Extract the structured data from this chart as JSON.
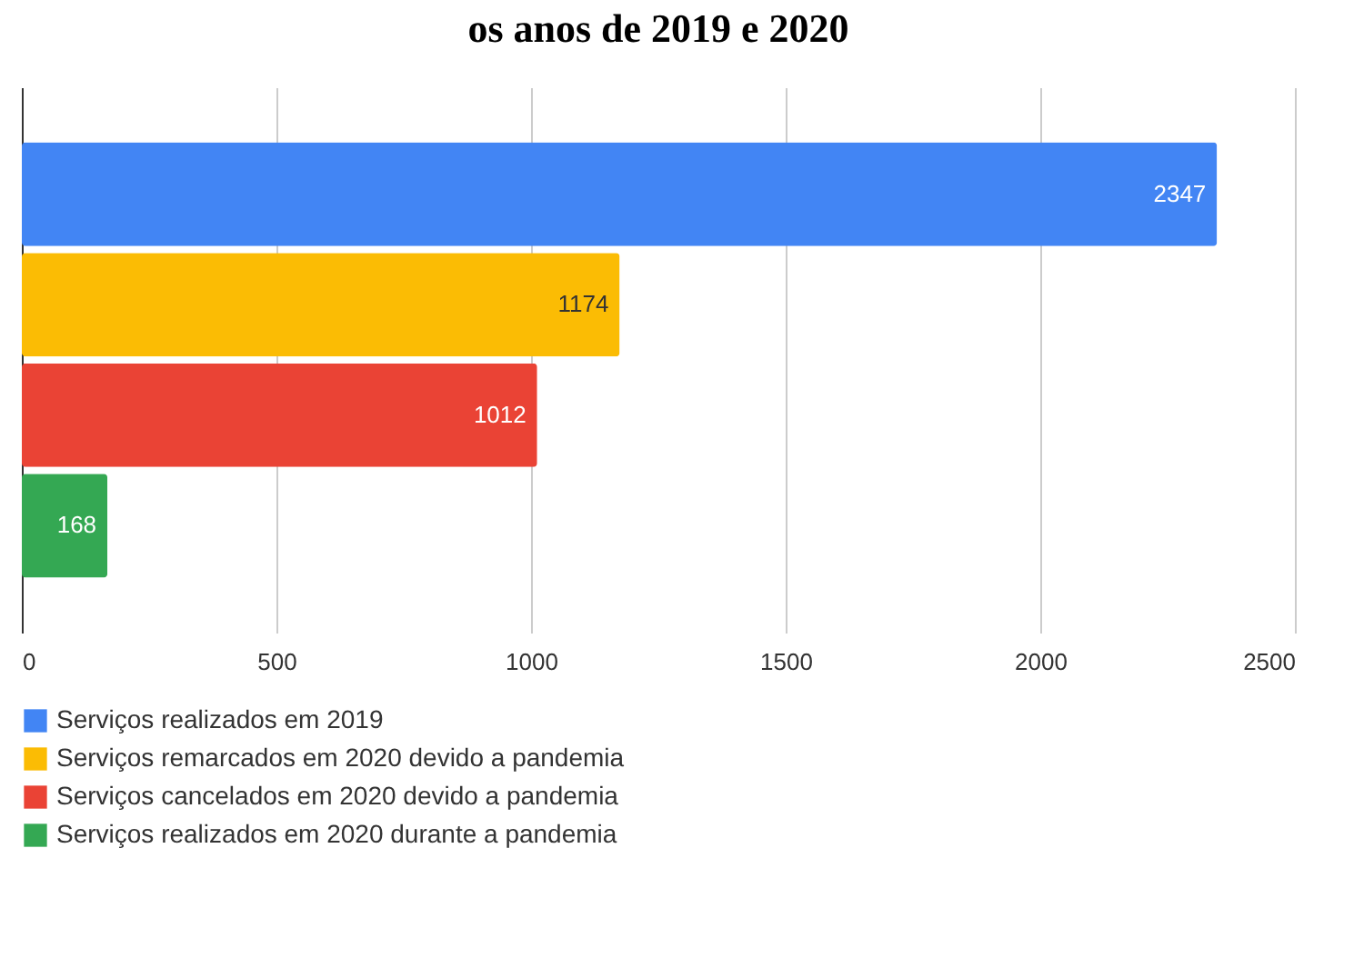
{
  "chart_data": {
    "type": "bar",
    "orientation": "horizontal",
    "title": "os anos de 2019 e 2020",
    "categories": [
      null
    ],
    "series": [
      {
        "name": "Serviços realizados em 2019",
        "color": "#4285f4",
        "values": [
          2347
        ]
      },
      {
        "name": "Serviços remarcados em 2020 devido a pandemia",
        "color": "#fbbc04",
        "values": [
          1174
        ]
      },
      {
        "name": "Serviços cancelados em 2020 devido a pandemia",
        "color": "#ea4335",
        "values": [
          1012
        ]
      },
      {
        "name": "Serviços realizados em 2020 durante a pandemia",
        "color": "#34a853",
        "values": [
          168
        ]
      }
    ],
    "xlim": [
      0,
      2500
    ],
    "xticks": [
      0,
      500,
      1000,
      1500,
      2000,
      2500
    ],
    "grid": "x",
    "legend": "bottom",
    "data_labels": true
  }
}
